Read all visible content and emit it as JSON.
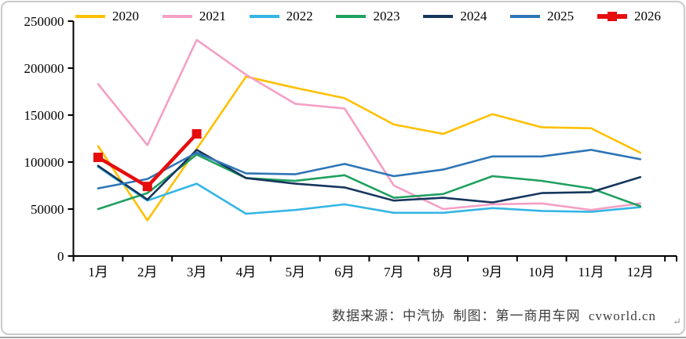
{
  "chart_data": {
    "type": "line",
    "title": "",
    "xlabel": "",
    "ylabel": "",
    "ylim": [
      0,
      250000
    ],
    "yticks": [
      0,
      50000,
      100000,
      150000,
      200000,
      250000
    ],
    "grid": false,
    "legend_position": "top",
    "categories": [
      "1月",
      "2月",
      "3月",
      "4月",
      "5月",
      "6月",
      "7月",
      "8月",
      "9月",
      "10月",
      "11月",
      "12月"
    ],
    "series": [
      {
        "name": "2020",
        "color": "#FFC000",
        "values": [
          117000,
          38000,
          114000,
          191000,
          179000,
          168000,
          140000,
          130000,
          151000,
          137000,
          136000,
          110000
        ]
      },
      {
        "name": "2021",
        "color": "#F4A0C4",
        "values": [
          183000,
          118000,
          230000,
          193000,
          162000,
          157000,
          75000,
          50000,
          55000,
          56000,
          49000,
          56000
        ]
      },
      {
        "name": "2022",
        "color": "#35B5E5",
        "values": [
          95000,
          59000,
          77000,
          45000,
          49000,
          55000,
          46000,
          46000,
          51000,
          48000,
          47000,
          52000
        ]
      },
      {
        "name": "2023",
        "color": "#1FA05F",
        "values": [
          50000,
          67000,
          108000,
          83000,
          80000,
          86000,
          62000,
          66000,
          85000,
          80000,
          72000,
          53000
        ]
      },
      {
        "name": "2024",
        "color": "#17365D",
        "values": [
          96000,
          60000,
          113000,
          83000,
          77000,
          73000,
          59000,
          62000,
          57000,
          67000,
          68000,
          84000
        ]
      },
      {
        "name": "2025",
        "color": "#2E75B6",
        "values": [
          72000,
          82000,
          110000,
          88000,
          87000,
          98000,
          85000,
          92000,
          106000,
          106000,
          113000,
          103000
        ]
      },
      {
        "name": "2026",
        "color": "#E60D0D",
        "marker": "square",
        "thick": true,
        "values": [
          105000,
          74000,
          130000,
          null,
          null,
          null,
          null,
          null,
          null,
          null,
          null,
          null
        ]
      }
    ]
  },
  "footer": {
    "source_text": "数据来源：中汽协  制图：第一商用车网  cvworld.cn",
    "paragraph_mark": "↵"
  }
}
